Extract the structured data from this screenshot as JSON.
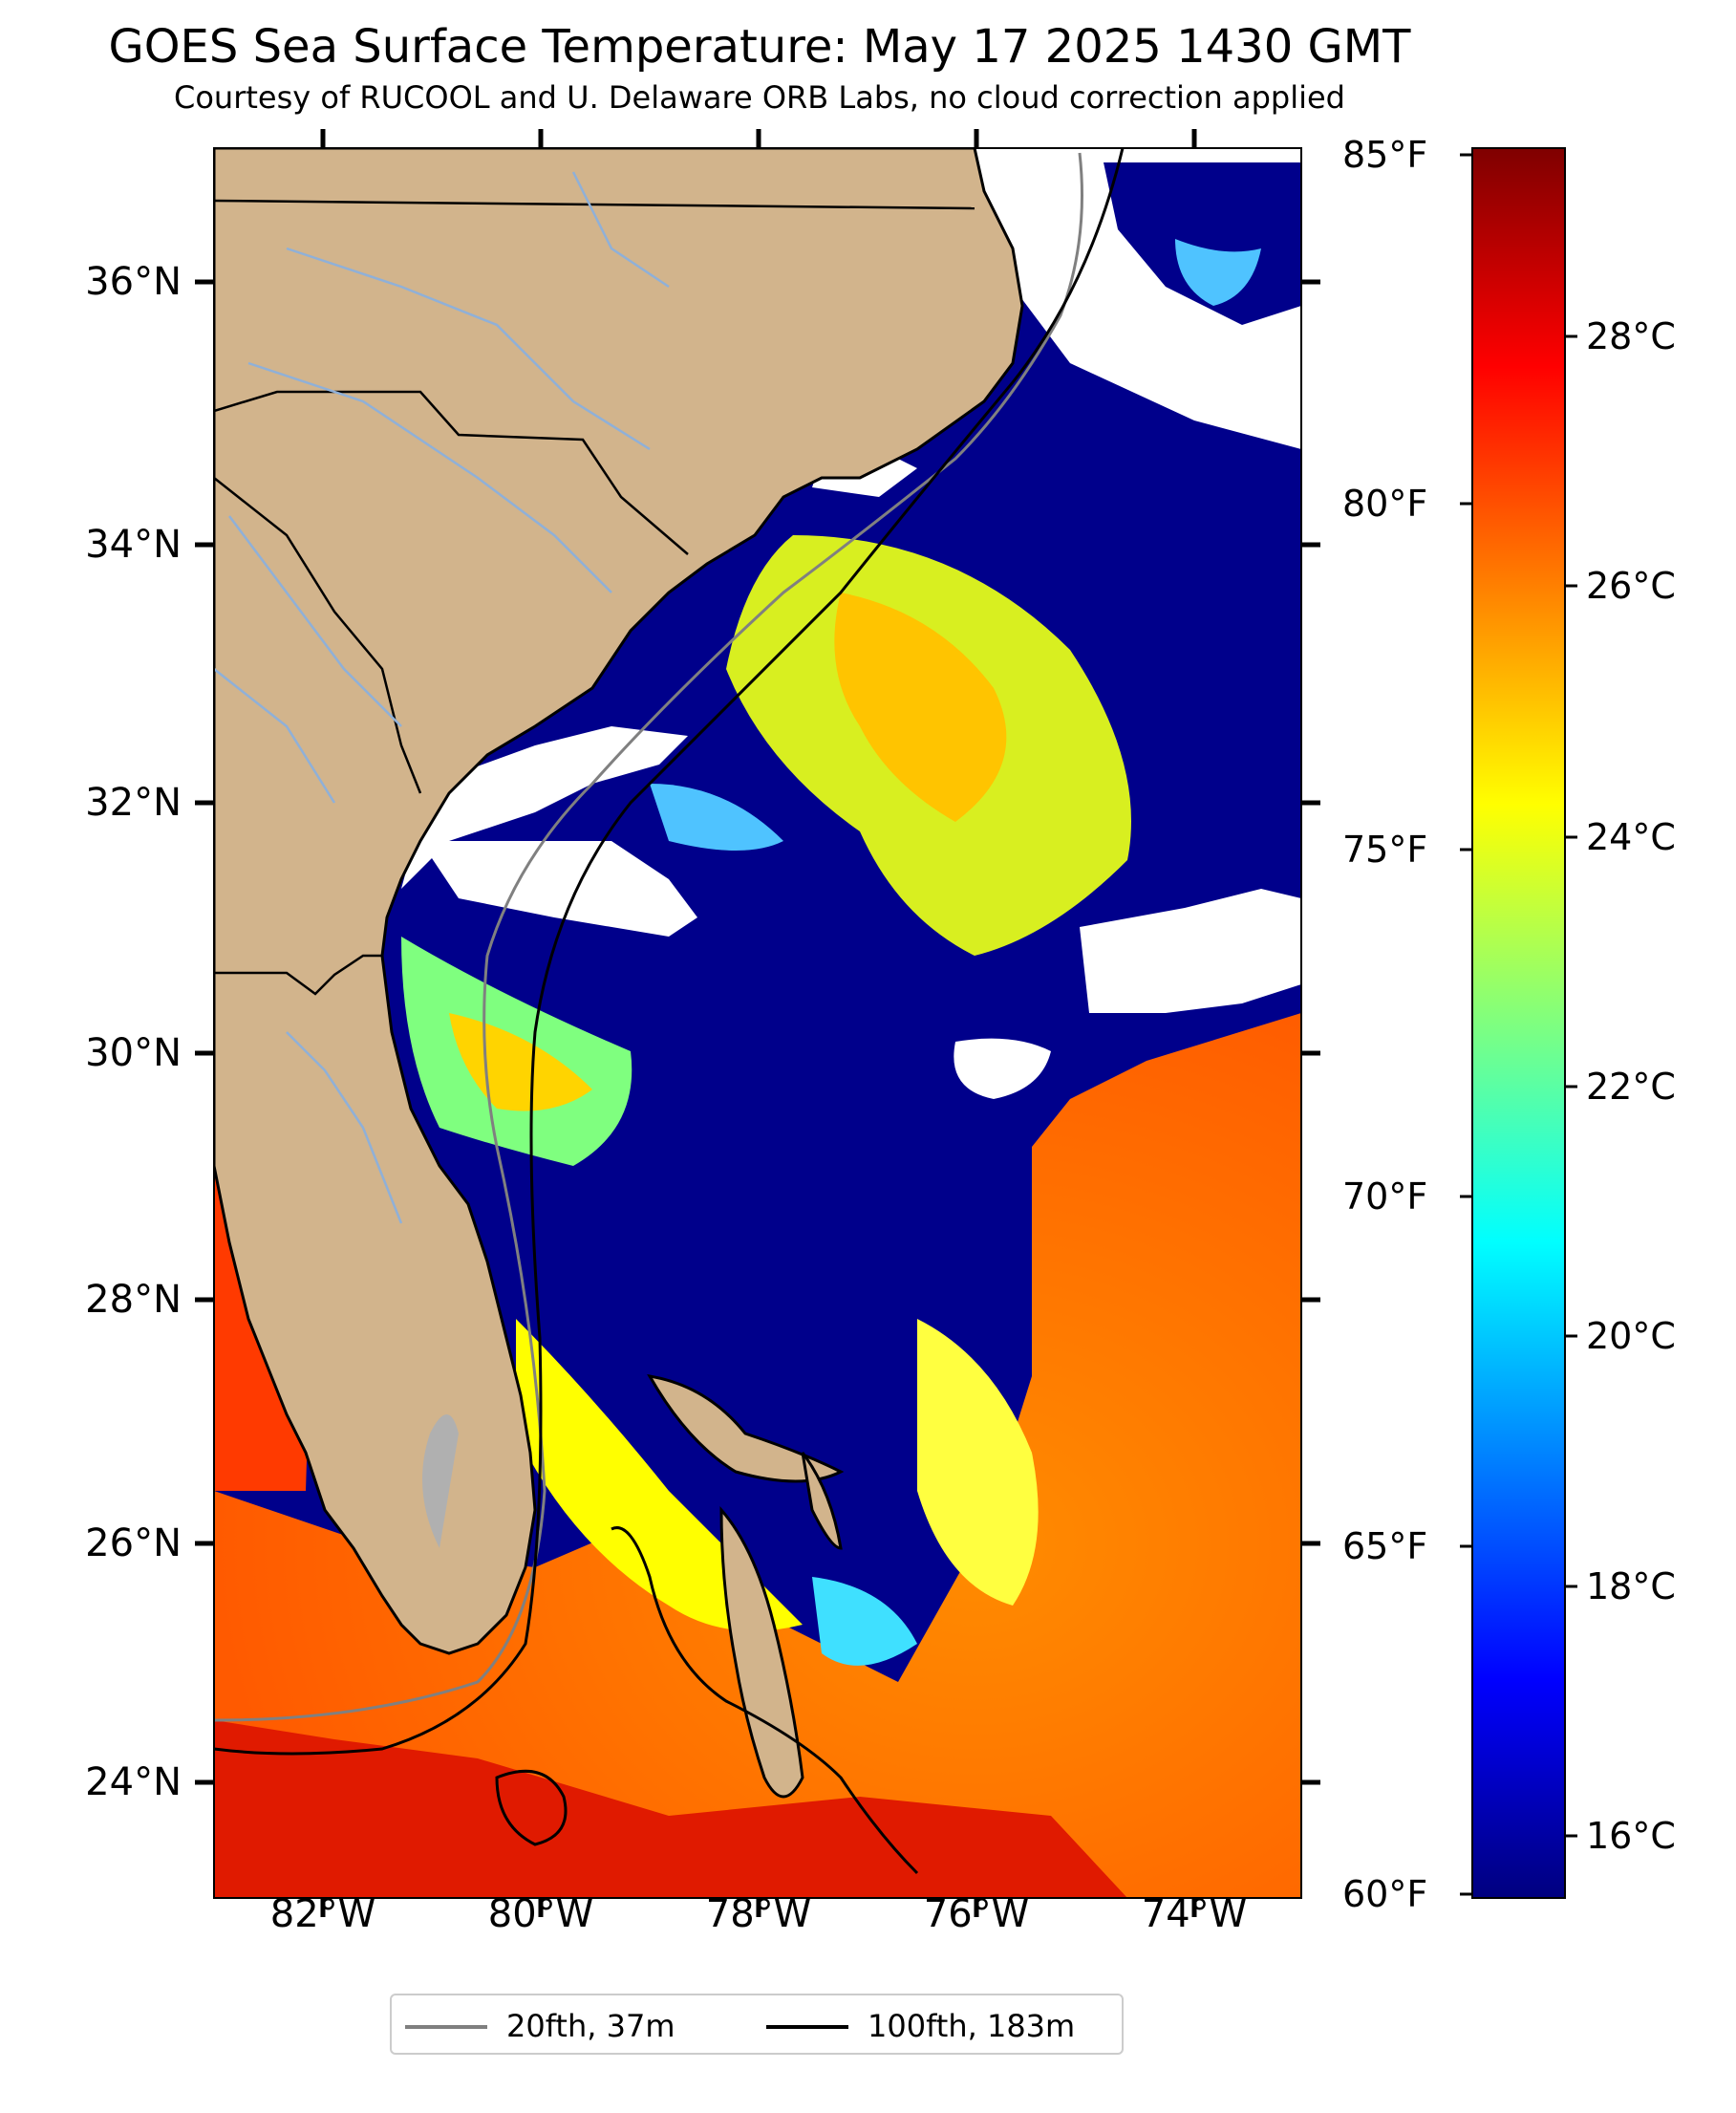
{
  "title": "GOES Sea Surface Temperature: May 17 2025 1430 GMT",
  "subtitle": "Courtesy of RUCOOL and U. Delaware ORB Labs, no cloud correction applied",
  "map": {
    "extent_lon": [
      -83,
      -73
    ],
    "extent_lat": [
      23.2,
      37.1
    ],
    "latitude_ticks": [
      "36°N",
      "34°N",
      "32°N",
      "30°N",
      "28°N",
      "26°N",
      "24°N"
    ],
    "longitude_ticks": [
      "82°W",
      "80°W",
      "78°W",
      "76°W",
      "74°W"
    ],
    "colors": {
      "land": "#d2b48c",
      "cloud": "#ffffff",
      "cold": "#00008b",
      "warm": "#ff4500",
      "rivers": "#8fb0d8",
      "borders": "#000000"
    }
  },
  "colorbar": {
    "fahrenheit_labels": [
      "85°F",
      "80°F",
      "75°F",
      "70°F",
      "65°F",
      "60°F"
    ],
    "celsius_labels": [
      "28°C",
      "26°C",
      "24°C",
      "22°C",
      "20°C",
      "18°C",
      "16°C"
    ],
    "range_f": [
      60,
      85
    ],
    "colormap": "jet"
  },
  "legend": {
    "items": [
      {
        "label": "20fth, 37m",
        "color": "#808080"
      },
      {
        "label": "100fth, 183m",
        "color": "#000000"
      }
    ]
  }
}
